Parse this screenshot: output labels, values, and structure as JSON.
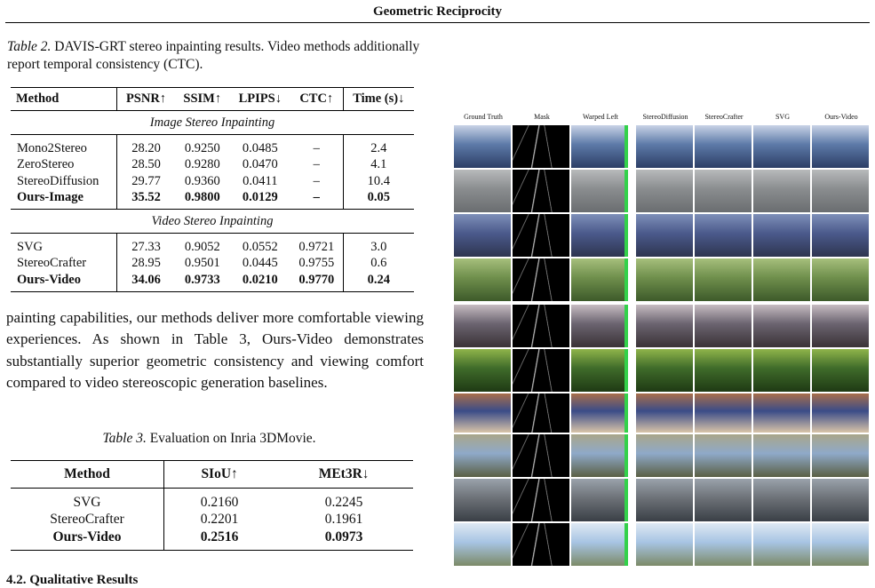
{
  "header": {
    "title": "Geometric Reciprocity"
  },
  "table2": {
    "caption_label": "Table 2.",
    "caption_text": " DAVIS-GRT stereo inpainting results. Video methods additionally report temporal consistency (CTC).",
    "headers": [
      "Method",
      "PSNR↑",
      "SSIM↑",
      "LPIPS↓",
      "CTC↑",
      "Time (s)↓"
    ],
    "section_image": "Image Stereo Inpainting",
    "section_video": "Video Stereo Inpainting",
    "image_rows": [
      [
        "Mono2Stereo",
        "28.20",
        "0.9250",
        "0.0485",
        "–",
        "2.4"
      ],
      [
        "ZeroStereo",
        "28.50",
        "0.9280",
        "0.0470",
        "–",
        "4.1"
      ],
      [
        "StereoDiffusion",
        "29.77",
        "0.9360",
        "0.0411",
        "–",
        "10.4"
      ],
      [
        "Ours-Image",
        "35.52",
        "0.9800",
        "0.0129",
        "–",
        "0.05"
      ]
    ],
    "video_rows": [
      [
        "SVG",
        "27.33",
        "0.9052",
        "0.0552",
        "0.9721",
        "3.0"
      ],
      [
        "StereoCrafter",
        "28.95",
        "0.9501",
        "0.0445",
        "0.9755",
        "0.6"
      ],
      [
        "Ours-Video",
        "34.06",
        "0.9733",
        "0.0210",
        "0.9770",
        "0.24"
      ]
    ]
  },
  "body_text": "painting capabilities, our methods deliver more comfortable viewing experiences. As shown in Table 3, Ours-Video demonstrates substantially superior geometric consistency and viewing comfort compared to video stereoscopic generation baselines.",
  "table3": {
    "caption_label": "Table 3.",
    "caption_text": " Evaluation on Inria 3DMovie.",
    "headers": [
      "Method",
      "SIoU↑",
      "MEt3R↓"
    ],
    "rows": [
      [
        "SVG",
        "0.2160",
        "0.2245"
      ],
      [
        "StereoCrafter",
        "0.2201",
        "0.1961"
      ],
      [
        "Ours-Video",
        "0.2516",
        "0.0973"
      ]
    ]
  },
  "subsection": "4.2. Qualitative Results",
  "figure": {
    "columns": [
      "Ground Truth",
      "Mask",
      "Warped Left",
      "StereoDiffusion",
      "StereoCrafter",
      "SVG",
      "Ours-Video"
    ]
  }
}
